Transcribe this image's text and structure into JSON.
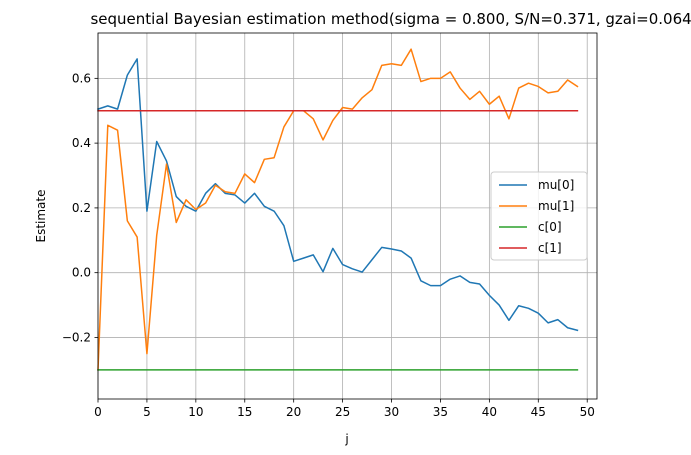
{
  "chart_data": {
    "type": "line",
    "title": "sequential Bayesian estimation method(sigma = 0.800, S/N=0.371, gzai=0.064)",
    "xlabel": "j",
    "ylabel": "Estimate",
    "xlim": [
      0,
      51
    ],
    "ylim": [
      -0.39,
      0.74
    ],
    "xticks": [
      0,
      5,
      10,
      15,
      20,
      25,
      30,
      35,
      40,
      45,
      50
    ],
    "yticks": [
      -0.2,
      0.0,
      0.2,
      0.4,
      0.6
    ],
    "ytick_labels": [
      "−0.2",
      "0.0",
      "0.2",
      "0.4",
      "0.6"
    ],
    "grid": true,
    "legend_position": "center-right",
    "x": [
      0,
      1,
      2,
      3,
      4,
      5,
      6,
      7,
      8,
      9,
      10,
      11,
      12,
      13,
      14,
      15,
      16,
      17,
      18,
      19,
      20,
      21,
      22,
      23,
      24,
      25,
      26,
      27,
      28,
      29,
      30,
      31,
      32,
      33,
      34,
      35,
      36,
      37,
      38,
      39,
      40,
      41,
      42,
      43,
      44,
      45,
      46,
      47,
      48,
      49
    ],
    "series": [
      {
        "name": "mu[0]",
        "color": "#1f77b4",
        "values": [
          0.505,
          0.515,
          0.505,
          0.61,
          0.66,
          0.19,
          0.405,
          0.345,
          0.235,
          0.205,
          0.19,
          0.245,
          0.275,
          0.245,
          0.24,
          0.215,
          0.245,
          0.205,
          0.19,
          0.145,
          0.035,
          0.045,
          0.055,
          0.003,
          0.075,
          0.025,
          0.012,
          0.002,
          0.04,
          0.078,
          0.073,
          0.067,
          0.045,
          -0.025,
          -0.04,
          -0.04,
          -0.02,
          -0.01,
          -0.03,
          -0.035,
          -0.07,
          -0.1,
          -0.147,
          -0.102,
          -0.11,
          -0.125,
          -0.155,
          -0.145,
          -0.17,
          -0.178
        ]
      },
      {
        "name": "mu[1]",
        "color": "#ff7f0e",
        "values": [
          -0.3,
          0.455,
          0.44,
          0.16,
          0.11,
          -0.25,
          0.115,
          0.335,
          0.155,
          0.225,
          0.195,
          0.215,
          0.27,
          0.25,
          0.245,
          0.305,
          0.278,
          0.35,
          0.355,
          0.45,
          0.5,
          0.5,
          0.475,
          0.41,
          0.47,
          0.51,
          0.505,
          0.54,
          0.565,
          0.64,
          0.645,
          0.64,
          0.69,
          0.59,
          0.6,
          0.6,
          0.62,
          0.57,
          0.535,
          0.56,
          0.52,
          0.545,
          0.475,
          0.57,
          0.585,
          0.575,
          0.555,
          0.56,
          0.595,
          0.575
        ]
      },
      {
        "name": "c[0]",
        "color": "#2ca02c",
        "values": [
          -0.3,
          -0.3,
          -0.3,
          -0.3,
          -0.3,
          -0.3,
          -0.3,
          -0.3,
          -0.3,
          -0.3,
          -0.3,
          -0.3,
          -0.3,
          -0.3,
          -0.3,
          -0.3,
          -0.3,
          -0.3,
          -0.3,
          -0.3,
          -0.3,
          -0.3,
          -0.3,
          -0.3,
          -0.3,
          -0.3,
          -0.3,
          -0.3,
          -0.3,
          -0.3,
          -0.3,
          -0.3,
          -0.3,
          -0.3,
          -0.3,
          -0.3,
          -0.3,
          -0.3,
          -0.3,
          -0.3,
          -0.3,
          -0.3,
          -0.3,
          -0.3,
          -0.3,
          -0.3,
          -0.3,
          -0.3,
          -0.3,
          -0.3
        ]
      },
      {
        "name": "c[1]",
        "color": "#d62728",
        "values": [
          0.5,
          0.5,
          0.5,
          0.5,
          0.5,
          0.5,
          0.5,
          0.5,
          0.5,
          0.5,
          0.5,
          0.5,
          0.5,
          0.5,
          0.5,
          0.5,
          0.5,
          0.5,
          0.5,
          0.5,
          0.5,
          0.5,
          0.5,
          0.5,
          0.5,
          0.5,
          0.5,
          0.5,
          0.5,
          0.5,
          0.5,
          0.5,
          0.5,
          0.5,
          0.5,
          0.5,
          0.5,
          0.5,
          0.5,
          0.5,
          0.5,
          0.5,
          0.5,
          0.5,
          0.5,
          0.5,
          0.5,
          0.5,
          0.5,
          0.5
        ]
      }
    ]
  }
}
